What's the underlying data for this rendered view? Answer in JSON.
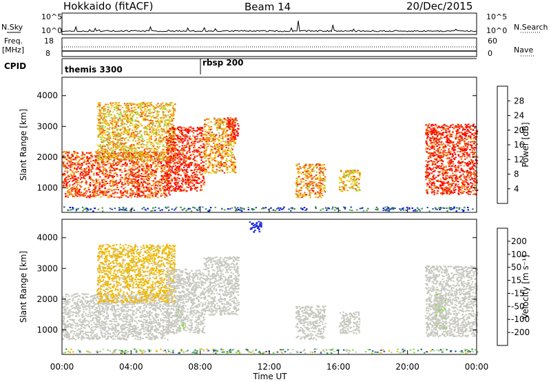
{
  "header": {
    "station": "Hokkaido (fitACF)",
    "beam": "Beam 14",
    "date": "20/Dec/2015"
  },
  "side_labels": {
    "nsky": "N.Sky",
    "freq": "Freq.",
    "freq_unit": "[MHz]",
    "cpid": "CPID",
    "nsearch": "N.Search",
    "nave": "Nave"
  },
  "noise_axis": {
    "left_top": "10^5",
    "left_bottom": "10^0",
    "right_top": "10^5",
    "right_bottom": "10^0"
  },
  "freq_axis": {
    "left_top": "18",
    "left_bottom": "8",
    "right_top": "60",
    "right_bottom": "0"
  },
  "cpid_segments": [
    {
      "label": "themis 3300",
      "start": "00:00"
    },
    {
      "label": "rbsp 200",
      "start": "08:00"
    }
  ],
  "colors": {
    "power": [
      "#0000ff",
      "#2a4fa6",
      "#2e7d5b",
      "#4fa24f",
      "#a6d14a",
      "#f5d21a",
      "#f5a31a",
      "#f06a10",
      "#e83010",
      "#ff0000"
    ],
    "velocity": [
      "#ff0000",
      "#ff4500",
      "#ff8c00",
      "#f0b800",
      "#c8c8c0",
      "#c8c8c0",
      "#7fdc3a",
      "#2e9f4a",
      "#2a5a8a",
      "#1a2ad8"
    ]
  },
  "chart_data": [
    {
      "type": "heatmap",
      "title": "Power",
      "xlabel": "",
      "ylabel": "Slant Range [km]",
      "ylim": [
        200,
        4600
      ],
      "yticks": [
        "1000",
        "2000",
        "3000",
        "4000"
      ],
      "colorbar": {
        "label": "Power [dB]",
        "ticks": [
          "4",
          "8",
          "12",
          "16",
          "20",
          "24",
          "28"
        ],
        "range": [
          0,
          30
        ]
      },
      "regions": [
        {
          "t_start": 0.0,
          "t_end": 6.2,
          "r_low": 700,
          "r_high": 2200,
          "value": 24
        },
        {
          "t_start": 2.0,
          "t_end": 6.5,
          "r_low": 1900,
          "r_high": 3800,
          "value": 18
        },
        {
          "t_start": 6.0,
          "t_end": 8.2,
          "r_low": 900,
          "r_high": 3000,
          "value": 26
        },
        {
          "t_start": 8.2,
          "t_end": 10.0,
          "r_low": 1500,
          "r_high": 3300,
          "value": 20
        },
        {
          "t_start": 9.5,
          "t_end": 10.2,
          "r_low": 2600,
          "r_high": 3300,
          "value": 28
        },
        {
          "t_start": 13.5,
          "t_end": 15.2,
          "r_low": 700,
          "r_high": 1800,
          "value": 20
        },
        {
          "t_start": 16.0,
          "t_end": 17.2,
          "r_low": 900,
          "r_high": 1600,
          "value": 18
        },
        {
          "t_start": 21.0,
          "t_end": 24.0,
          "r_low": 800,
          "r_high": 3100,
          "value": 26
        }
      ]
    },
    {
      "type": "heatmap",
      "title": "Velocity",
      "xlabel": "Time UT",
      "ylabel": "Slant Range [km]",
      "ylim": [
        200,
        4600
      ],
      "yticks": [
        "1000",
        "2000",
        "3000",
        "4000"
      ],
      "xticks": [
        "00:00",
        "04:00",
        "08:00",
        "12:00",
        "16:00",
        "20:00",
        "00:00"
      ],
      "xlim_hours": [
        0,
        24
      ],
      "colorbar": {
        "label": "Velocity [m s^-1]",
        "ticks": [
          "-200",
          "-100",
          "-50",
          "-15",
          "15",
          "50",
          "100",
          "200"
        ],
        "range": [
          -250,
          250
        ]
      },
      "regions": [
        {
          "t_start": 0.0,
          "t_end": 6.2,
          "r_low": 700,
          "r_high": 2200,
          "value": 0
        },
        {
          "t_start": 2.0,
          "t_end": 6.5,
          "r_low": 1900,
          "r_high": 3800,
          "value": -60
        },
        {
          "t_start": 6.0,
          "t_end": 8.2,
          "r_low": 900,
          "r_high": 3000,
          "value": 0
        },
        {
          "t_start": 6.6,
          "t_end": 7.0,
          "r_low": 1000,
          "r_high": 1800,
          "value": 40
        },
        {
          "t_start": 8.2,
          "t_end": 10.2,
          "r_low": 1500,
          "r_high": 3400,
          "value": 0
        },
        {
          "t_start": 10.8,
          "t_end": 11.5,
          "r_low": 4200,
          "r_high": 4550,
          "value": 220
        },
        {
          "t_start": 13.5,
          "t_end": 15.2,
          "r_low": 700,
          "r_high": 1800,
          "value": 0
        },
        {
          "t_start": 16.0,
          "t_end": 17.2,
          "r_low": 900,
          "r_high": 1600,
          "value": 0
        },
        {
          "t_start": 21.0,
          "t_end": 24.0,
          "r_low": 800,
          "r_high": 3100,
          "value": 0
        },
        {
          "t_start": 21.5,
          "t_end": 22.2,
          "r_low": 1000,
          "r_high": 2200,
          "value": 40
        }
      ]
    }
  ]
}
